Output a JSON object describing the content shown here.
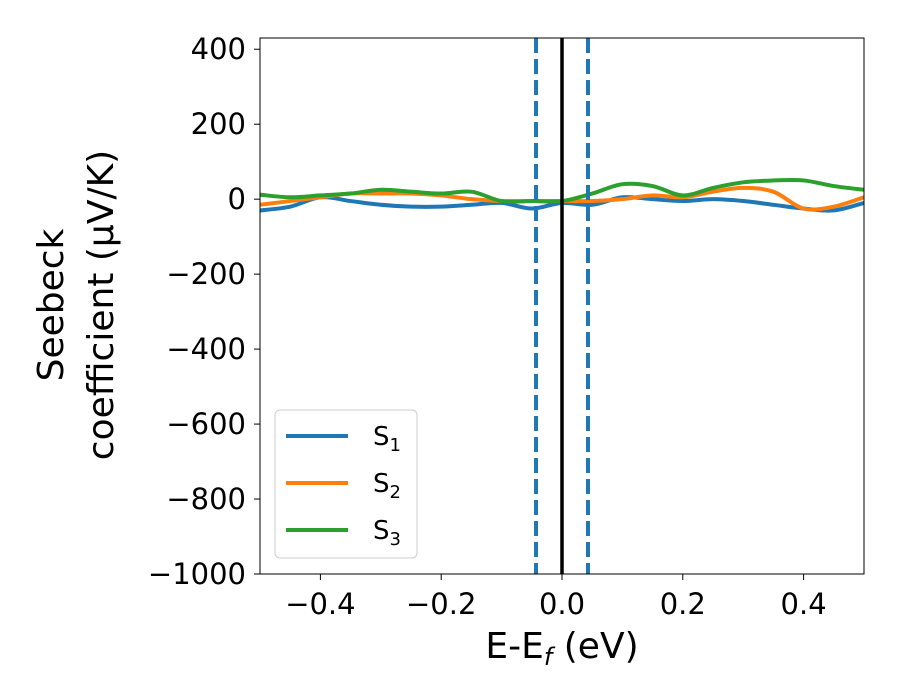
{
  "chart_data": {
    "type": "line",
    "xlabel": {
      "main": "E-E",
      "sub": "f",
      "tail": " (eV)"
    },
    "ylabel": {
      "line1": "Seebeck",
      "line2": "coefficient  (μV/K)"
    },
    "xlim": [
      -0.5,
      0.5
    ],
    "ylim": [
      -1000,
      430
    ],
    "xticks": [
      -0.4,
      -0.2,
      0.0,
      0.2,
      0.4
    ],
    "xtick_labels": [
      "−0.4",
      "−0.2",
      "0.0",
      "0.2",
      "0.4"
    ],
    "yticks": [
      400,
      200,
      0,
      -200,
      -400,
      -600,
      -800,
      -1000
    ],
    "ytick_labels": [
      "400",
      "200",
      "0",
      "−200",
      "−400",
      "−600",
      "−800",
      "−1000"
    ],
    "grid": false,
    "legend_position": "lower-left",
    "vlines": [
      {
        "x": 0.0,
        "style": "solid",
        "color": "#000000"
      },
      {
        "x": -0.043,
        "style": "dashed",
        "color": "#1f77b4"
      },
      {
        "x": 0.043,
        "style": "dashed",
        "color": "#1f77b4"
      }
    ],
    "series": [
      {
        "name": {
          "base": "S",
          "sub": "1"
        },
        "color": "#1f77b4",
        "x": [
          -0.5,
          -0.45,
          -0.4,
          -0.35,
          -0.3,
          -0.25,
          -0.2,
          -0.15,
          -0.1,
          -0.05,
          0.0,
          0.05,
          0.1,
          0.15,
          0.2,
          0.25,
          0.3,
          0.35,
          0.4,
          0.45,
          0.5
        ],
        "y": [
          -30,
          -20,
          5,
          -5,
          -15,
          -20,
          -20,
          -15,
          -10,
          -25,
          -10,
          -15,
          5,
          0,
          -5,
          0,
          -5,
          -15,
          -25,
          -30,
          -10
        ]
      },
      {
        "name": {
          "base": "S",
          "sub": "2"
        },
        "color": "#ff7f0e",
        "x": [
          -0.5,
          -0.45,
          -0.4,
          -0.35,
          -0.3,
          -0.25,
          -0.2,
          -0.15,
          -0.1,
          -0.05,
          0.0,
          0.05,
          0.1,
          0.15,
          0.2,
          0.25,
          0.3,
          0.35,
          0.4,
          0.45,
          0.5
        ],
        "y": [
          -15,
          -5,
          5,
          15,
          15,
          15,
          10,
          0,
          -5,
          -5,
          -5,
          -5,
          0,
          10,
          5,
          20,
          30,
          20,
          -25,
          -20,
          5
        ]
      },
      {
        "name": {
          "base": "S",
          "sub": "3"
        },
        "color": "#2ca02c",
        "x": [
          -0.5,
          -0.45,
          -0.4,
          -0.35,
          -0.3,
          -0.25,
          -0.2,
          -0.15,
          -0.1,
          -0.05,
          0.0,
          0.05,
          0.1,
          0.15,
          0.2,
          0.25,
          0.3,
          0.35,
          0.4,
          0.45,
          0.5
        ],
        "y": [
          12,
          5,
          10,
          15,
          25,
          20,
          15,
          20,
          -5,
          -5,
          -5,
          15,
          40,
          35,
          10,
          30,
          45,
          50,
          50,
          35,
          25
        ]
      }
    ]
  }
}
